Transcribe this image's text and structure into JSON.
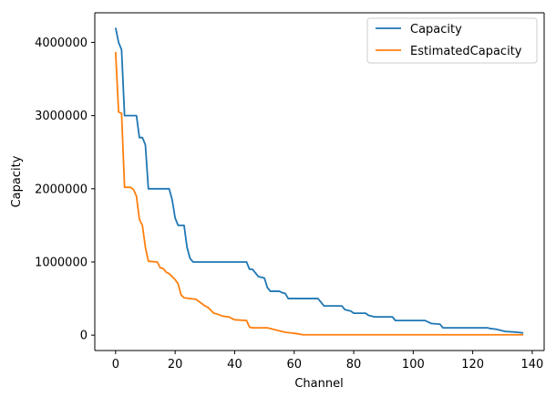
{
  "chart_data": {
    "type": "line",
    "title": "",
    "xlabel": "Channel",
    "ylabel": "Capacity",
    "xlim": [
      -7,
      144
    ],
    "ylim": [
      -210000,
      4405000
    ],
    "x_ticks": [
      0,
      20,
      40,
      60,
      80,
      100,
      120,
      140
    ],
    "y_ticks": [
      0,
      1000000,
      2000000,
      3000000,
      4000000
    ],
    "x_tick_labels": [
      "0",
      "20",
      "40",
      "60",
      "80",
      "100",
      "120",
      "140"
    ],
    "y_tick_labels": [
      "0",
      "1000000",
      "2000000",
      "3000000",
      "4000000"
    ],
    "grid": false,
    "legend_position": "top-right",
    "series": [
      {
        "name": "Capacity",
        "color": "#1f77b4",
        "points": [
          [
            0,
            4200000
          ],
          [
            1,
            4000000
          ],
          [
            2,
            3900000
          ],
          [
            3,
            3000000
          ],
          [
            4,
            3000000
          ],
          [
            7,
            3000000
          ],
          [
            8,
            2700000
          ],
          [
            9,
            2700000
          ],
          [
            10,
            2600000
          ],
          [
            11,
            2000000
          ],
          [
            18,
            2000000
          ],
          [
            19,
            1850000
          ],
          [
            20,
            1600000
          ],
          [
            21,
            1500000
          ],
          [
            23,
            1500000
          ],
          [
            24,
            1200000
          ],
          [
            25,
            1050000
          ],
          [
            26,
            1000000
          ],
          [
            44,
            1000000
          ],
          [
            45,
            900000
          ],
          [
            46,
            900000
          ],
          [
            47,
            850000
          ],
          [
            48,
            800000
          ],
          [
            50,
            780000
          ],
          [
            51,
            650000
          ],
          [
            52,
            600000
          ],
          [
            55,
            600000
          ],
          [
            56,
            580000
          ],
          [
            57,
            570000
          ],
          [
            58,
            500000
          ],
          [
            68,
            500000
          ],
          [
            69,
            450000
          ],
          [
            70,
            400000
          ],
          [
            76,
            400000
          ],
          [
            77,
            350000
          ],
          [
            79,
            330000
          ],
          [
            80,
            300000
          ],
          [
            84,
            300000
          ],
          [
            85,
            270000
          ],
          [
            87,
            250000
          ],
          [
            93,
            250000
          ],
          [
            94,
            200000
          ],
          [
            104,
            200000
          ],
          [
            105,
            180000
          ],
          [
            106,
            160000
          ],
          [
            109,
            150000
          ],
          [
            110,
            100000
          ],
          [
            125,
            100000
          ],
          [
            126,
            90000
          ],
          [
            128,
            80000
          ],
          [
            130,
            60000
          ],
          [
            131,
            50000
          ],
          [
            135,
            40000
          ],
          [
            137,
            30000
          ]
        ]
      },
      {
        "name": "EstimatedCapacity",
        "color": "#ff7f0e",
        "points": [
          [
            0,
            3870000
          ],
          [
            1,
            3050000
          ],
          [
            2,
            3030000
          ],
          [
            3,
            2020000
          ],
          [
            5,
            2020000
          ],
          [
            6,
            1990000
          ],
          [
            7,
            1900000
          ],
          [
            8,
            1580000
          ],
          [
            9,
            1500000
          ],
          [
            10,
            1200000
          ],
          [
            11,
            1010000
          ],
          [
            14,
            1000000
          ],
          [
            15,
            920000
          ],
          [
            16,
            910000
          ],
          [
            17,
            860000
          ],
          [
            18,
            840000
          ],
          [
            20,
            760000
          ],
          [
            21,
            700000
          ],
          [
            22,
            550000
          ],
          [
            23,
            510000
          ],
          [
            27,
            490000
          ],
          [
            29,
            430000
          ],
          [
            30,
            400000
          ],
          [
            31,
            380000
          ],
          [
            33,
            300000
          ],
          [
            34,
            290000
          ],
          [
            36,
            260000
          ],
          [
            38,
            250000
          ],
          [
            40,
            210000
          ],
          [
            44,
            200000
          ],
          [
            45,
            110000
          ],
          [
            46,
            100000
          ],
          [
            51,
            100000
          ],
          [
            53,
            80000
          ],
          [
            55,
            60000
          ],
          [
            57,
            40000
          ],
          [
            59,
            30000
          ],
          [
            61,
            20000
          ],
          [
            63,
            5000
          ],
          [
            137,
            5000
          ]
        ]
      }
    ]
  }
}
